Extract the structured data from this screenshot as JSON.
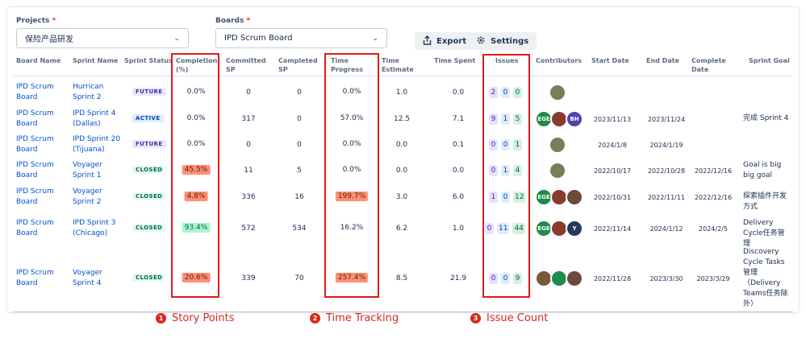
{
  "filters": {
    "projects_label": "Projects",
    "projects_value": "保险产品研发",
    "boards_label": "Boards",
    "boards_value": "IPD Scrum Board",
    "required_mark": "*"
  },
  "toolbar": {
    "export_label": "Export",
    "settings_label": "Settings",
    "export_icon": "export-icon",
    "settings_icon": "gear-icon"
  },
  "table": {
    "headers": {
      "board_name": "Board Name",
      "sprint_name": "Sprint Name",
      "sprint_status": "Sprint Status",
      "completion": "Completion (%)",
      "committed": "Committed SP",
      "completed": "Completed SP",
      "time_progress": "Time Progress",
      "time_estimate": "Time Estimate",
      "time_spent": "Time Spent",
      "issues": "Issues",
      "contributors": "Contributors",
      "start_date": "Start Date",
      "end_date": "End Date",
      "complete_date": "Complete Date",
      "sprint_goal": "Sprint Goal"
    },
    "rows": [
      {
        "board": "IPD Scrum Board",
        "sprint": "Hurrican Sprint 2",
        "status": "FUTURE",
        "completion": "0.0%",
        "completion_style": "plain",
        "committed": "0",
        "completed": "0",
        "time_progress": "0.0%",
        "tp_style": "plain",
        "estimate": "1.0",
        "spent": "0.0",
        "issues": [
          "2",
          "0",
          "0"
        ],
        "contributors": [
          {
            "label": "",
            "color": "#7a7d5a"
          }
        ],
        "start": "",
        "end": "",
        "complete": "",
        "goal": ""
      },
      {
        "board": "IPD Scrum Board",
        "sprint": "IPD Sprint 4 (Dallas)",
        "status": "ACTIVE",
        "completion": "0.0%",
        "completion_style": "plain",
        "committed": "317",
        "completed": "0",
        "time_progress": "57.0%",
        "tp_style": "plain",
        "estimate": "12.5",
        "spent": "7.1",
        "issues": [
          "9",
          "1",
          "5"
        ],
        "contributors": [
          {
            "label": "EGE",
            "color": "#1f8a4c"
          },
          {
            "label": "",
            "color": "#8b3a2f"
          },
          {
            "label": "BH",
            "color": "#5243aa"
          }
        ],
        "start": "2023/11/13",
        "end": "2023/11/24",
        "complete": "",
        "goal": "完成 Sprint 4"
      },
      {
        "board": "IPD Scrum Board",
        "sprint": "IPD Sprint 20 (Tijuana)",
        "status": "FUTURE",
        "completion": "0.0%",
        "completion_style": "plain",
        "committed": "0",
        "completed": "0",
        "time_progress": "0.0%",
        "tp_style": "plain",
        "estimate": "0.0",
        "spent": "0.1",
        "issues": [
          "0",
          "0",
          "1"
        ],
        "contributors": [
          {
            "label": "",
            "color": "#7a7d5a"
          }
        ],
        "start": "2024/1/8",
        "end": "2024/1/19",
        "complete": "",
        "goal": ""
      },
      {
        "board": "IPD Scrum Board",
        "sprint": "Voyager Sprint 1",
        "status": "CLOSED",
        "completion": "45.5%",
        "completion_style": "red",
        "committed": "11",
        "completed": "5",
        "time_progress": "0.0%",
        "tp_style": "plain",
        "estimate": "0.0",
        "spent": "0.0",
        "issues": [
          "0",
          "1",
          "4"
        ],
        "contributors": [
          {
            "label": "",
            "color": "#7a7d5a"
          }
        ],
        "start": "2022/10/17",
        "end": "2022/10/28",
        "complete": "2022/12/16",
        "goal": "Goal is big big goal"
      },
      {
        "board": "IPD Scrum Board",
        "sprint": "Voyager Sprint 2",
        "status": "CLOSED",
        "completion": "4.8%",
        "completion_style": "red",
        "committed": "336",
        "completed": "16",
        "time_progress": "199.7%",
        "tp_style": "red",
        "estimate": "3.0",
        "spent": "6.0",
        "issues": [
          "1",
          "0",
          "12"
        ],
        "contributors": [
          {
            "label": "EGE",
            "color": "#1f8a4c"
          },
          {
            "label": "",
            "color": "#8b3a2f"
          },
          {
            "label": "",
            "color": "#6b4a3a"
          }
        ],
        "start": "2022/10/31",
        "end": "2022/11/11",
        "complete": "2022/12/16",
        "goal": "探索插件开发方式"
      },
      {
        "board": "IPD Scrum Board",
        "sprint": "IPD Sprint 3 (Chicago)",
        "status": "CLOSED",
        "completion": "93.4%",
        "completion_style": "green",
        "committed": "572",
        "completed": "534",
        "time_progress": "16.2%",
        "tp_style": "plain",
        "estimate": "6.2",
        "spent": "1.0",
        "issues": [
          "0",
          "11",
          "44"
        ],
        "contributors": [
          {
            "label": "EGE",
            "color": "#1f8a4c"
          },
          {
            "label": "",
            "color": "#8b3a2f"
          },
          {
            "label": "Y",
            "color": "#253858"
          }
        ],
        "start": "2022/11/14",
        "end": "2024/1/12",
        "complete": "2024/2/5",
        "goal": "Delivery Cycle任务管理"
      },
      {
        "board": "IPD Scrum Board",
        "sprint": "Voyager Sprint 4",
        "status": "CLOSED",
        "completion": "20.6%",
        "completion_style": "red",
        "committed": "339",
        "completed": "70",
        "time_progress": "257.4%",
        "tp_style": "red",
        "estimate": "8.5",
        "spent": "21.9",
        "issues": [
          "0",
          "0",
          "9"
        ],
        "contributors": [
          {
            "label": "",
            "color": "#7a5a3a"
          },
          {
            "label": "",
            "color": "#1f8a4c"
          },
          {
            "label": "",
            "color": "#6b4a3a"
          }
        ],
        "start": "2022/11/28",
        "end": "2023/3/30",
        "complete": "2023/3/29",
        "goal": "Discovery Cycle Tasks管理（Delivery Teams任务除外）"
      }
    ]
  },
  "annotations": [
    {
      "number": "1",
      "label": "Story Points"
    },
    {
      "number": "2",
      "label": "Time Tracking"
    },
    {
      "number": "3",
      "label": "Issue Count"
    }
  ],
  "colors": {
    "highlight_red": "#e01b1b",
    "link_blue": "#0052cc"
  }
}
